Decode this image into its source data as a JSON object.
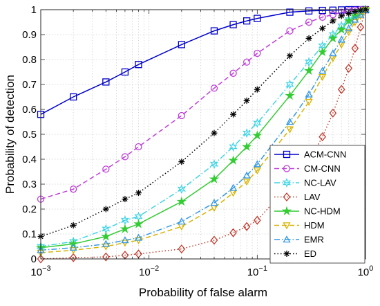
{
  "chart_data": {
    "type": "line",
    "xscale": "log",
    "xlim": [
      0.001,
      1
    ],
    "ylim": [
      0,
      1
    ],
    "xlabel": "Probability of false alarm",
    "ylabel": "Probability of detection",
    "grid": true,
    "legend_position": "lower-right",
    "x_ticks": [
      {
        "value": 0.001,
        "base": "10",
        "exp": "−3"
      },
      {
        "value": 0.01,
        "base": "10",
        "exp": "−2"
      },
      {
        "value": 0.1,
        "base": "10",
        "exp": "−1"
      },
      {
        "value": 1,
        "base": "10",
        "exp": "0"
      }
    ],
    "y_ticks": [
      {
        "value": 0,
        "label": "0"
      },
      {
        "value": 0.1,
        "label": "0.1"
      },
      {
        "value": 0.2,
        "label": "0.2"
      },
      {
        "value": 0.3,
        "label": "0.3"
      },
      {
        "value": 0.4,
        "label": "0.4"
      },
      {
        "value": 0.5,
        "label": "0.5"
      },
      {
        "value": 0.6,
        "label": "0.6"
      },
      {
        "value": 0.7,
        "label": "0.7"
      },
      {
        "value": 0.8,
        "label": "0.8"
      },
      {
        "value": 0.9,
        "label": "0.9"
      },
      {
        "value": 1,
        "label": "1"
      }
    ],
    "x": [
      0.001,
      0.002,
      0.004,
      0.006,
      0.008,
      0.02,
      0.04,
      0.06,
      0.08,
      0.1,
      0.2,
      0.3,
      0.4,
      0.5,
      0.6,
      0.7,
      0.8,
      0.9,
      1.0
    ],
    "series": [
      {
        "name": "ACM-CNN",
        "color": "#0000cc",
        "dash": "solid",
        "marker": "square",
        "values": [
          0.58,
          0.65,
          0.71,
          0.75,
          0.78,
          0.86,
          0.915,
          0.94,
          0.955,
          0.965,
          0.99,
          0.995,
          0.997,
          0.998,
          0.999,
          1.0,
          1.0,
          1.0,
          1.0
        ]
      },
      {
        "name": "CM-CNN",
        "color": "#bf3fd9",
        "dash": "dash",
        "marker": "circle",
        "values": [
          0.24,
          0.28,
          0.36,
          0.41,
          0.45,
          0.575,
          0.685,
          0.745,
          0.79,
          0.825,
          0.915,
          0.95,
          0.97,
          0.98,
          0.99,
          0.995,
          0.998,
          1.0,
          1.0
        ]
      },
      {
        "name": "NC-LAV",
        "color": "#3fd4e6",
        "dash": "dashdot",
        "marker": "hexagram",
        "values": [
          0.05,
          0.07,
          0.12,
          0.155,
          0.17,
          0.28,
          0.38,
          0.45,
          0.505,
          0.545,
          0.7,
          0.79,
          0.855,
          0.9,
          0.935,
          0.96,
          0.98,
          0.99,
          1.0
        ]
      },
      {
        "name": "LAV",
        "color": "#c0392b",
        "dash": "dot",
        "marker": "diamond",
        "values": [
          0.0,
          0.005,
          0.008,
          0.015,
          0.02,
          0.04,
          0.075,
          0.105,
          0.13,
          0.155,
          0.3,
          0.39,
          0.49,
          0.585,
          0.68,
          0.765,
          0.845,
          0.93,
          1.0
        ]
      },
      {
        "name": "NC-HDM",
        "color": "#33cc33",
        "dash": "solid",
        "marker": "star",
        "values": [
          0.045,
          0.06,
          0.09,
          0.12,
          0.14,
          0.23,
          0.32,
          0.395,
          0.45,
          0.495,
          0.655,
          0.755,
          0.83,
          0.885,
          0.92,
          0.955,
          0.975,
          0.99,
          1.0
        ]
      },
      {
        "name": "HDM",
        "color": "#d9b300",
        "dash": "dash",
        "marker": "triangle-down",
        "values": [
          0.025,
          0.035,
          0.05,
          0.065,
          0.075,
          0.13,
          0.205,
          0.265,
          0.31,
          0.355,
          0.52,
          0.63,
          0.73,
          0.805,
          0.86,
          0.91,
          0.95,
          0.975,
          1.0
        ]
      },
      {
        "name": "EMR",
        "color": "#3399e6",
        "dash": "dashdot",
        "marker": "triangle-up",
        "values": [
          0.035,
          0.045,
          0.06,
          0.075,
          0.085,
          0.15,
          0.225,
          0.285,
          0.335,
          0.38,
          0.55,
          0.66,
          0.755,
          0.825,
          0.88,
          0.925,
          0.96,
          0.98,
          1.0
        ]
      },
      {
        "name": "ED",
        "color": "#000000",
        "dash": "dot",
        "marker": "asterisk",
        "values": [
          0.09,
          0.135,
          0.2,
          0.24,
          0.265,
          0.39,
          0.505,
          0.58,
          0.635,
          0.68,
          0.815,
          0.885,
          0.925,
          0.955,
          0.975,
          0.985,
          0.993,
          0.998,
          1.0
        ]
      }
    ]
  }
}
